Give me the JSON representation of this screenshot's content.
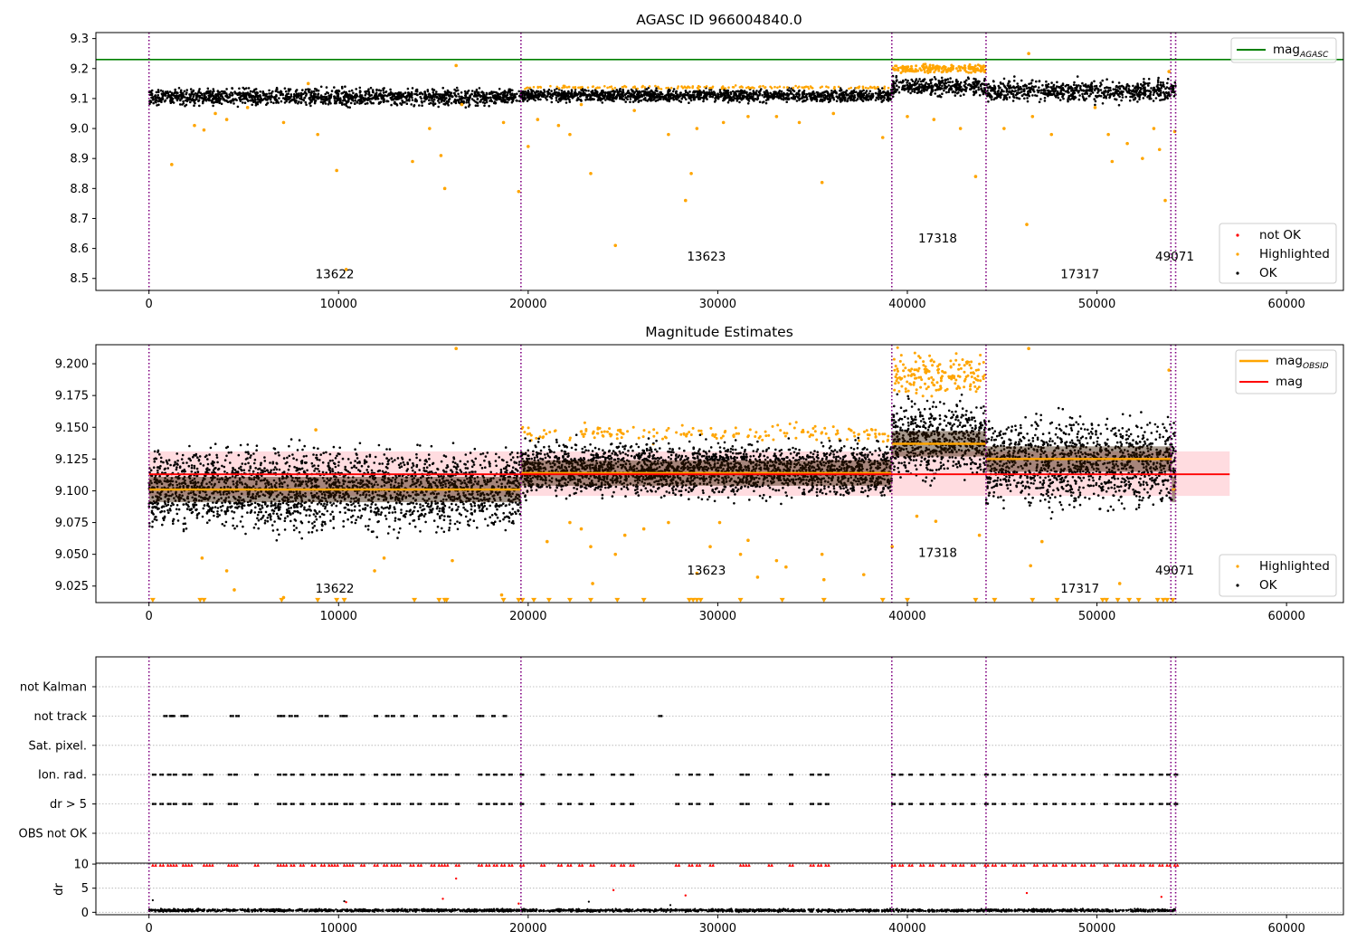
{
  "figure": {
    "colors": {
      "ok": "#000000",
      "highlighted": "#ffa500",
      "not_ok": "#ff0000",
      "agasc_line": "#008000",
      "mag_line": "#ff0000",
      "mag_obsid_line": "#ffa500",
      "band_fill": "#ffc0c6",
      "obsid_boundary": "#800080",
      "grid": "#b0b0b0"
    },
    "obsid_boundaries": [
      0,
      19620,
      39180,
      44150,
      53900,
      54150
    ],
    "obsid_labels": [
      "13622",
      "13623",
      "17318",
      "17317",
      "49071"
    ]
  },
  "chart_data": [
    {
      "type": "scatter",
      "title": "AGASC ID 966004840.0",
      "xlim": [
        -2800,
        63000
      ],
      "ylim": [
        8.46,
        9.32
      ],
      "xticks": [
        0,
        10000,
        20000,
        30000,
        40000,
        50000,
        60000
      ],
      "xticklabels": [
        "0",
        "10000",
        "20000",
        "30000",
        "40000",
        "50000",
        "60000"
      ],
      "yticks": [
        8.5,
        8.6,
        8.7,
        8.8,
        8.9,
        9.0,
        9.1,
        9.2,
        9.3
      ],
      "yticklabels": [
        "8.5",
        "8.6",
        "8.7",
        "8.8",
        "8.9",
        "9.0",
        "9.1",
        "9.2",
        "9.3"
      ],
      "hlines": [
        {
          "name": "mag_AGASC",
          "y": 9.23
        }
      ],
      "obsid_annotations": [
        {
          "text": "13622",
          "x": 9800,
          "y": 8.5
        },
        {
          "text": "13623",
          "x": 29400,
          "y": 8.56
        },
        {
          "text": "17318",
          "x": 41600,
          "y": 8.62
        },
        {
          "text": "17317",
          "x": 49100,
          "y": 8.5
        },
        {
          "text": "49071",
          "x": 54100,
          "y": 8.56
        }
      ],
      "series": [
        {
          "name": "not OK",
          "color": "#ff0000",
          "points": []
        },
        {
          "name": "Highlighted",
          "color": "#ffa500",
          "outliers": [
            [
              1200,
              8.88
            ],
            [
              2400,
              9.01
            ],
            [
              2900,
              8.995
            ],
            [
              3500,
              9.05
            ],
            [
              4100,
              9.03
            ],
            [
              5200,
              9.07
            ],
            [
              7100,
              9.02
            ],
            [
              8400,
              9.15
            ],
            [
              8900,
              8.98
            ],
            [
              9900,
              8.86
            ],
            [
              10400,
              8.53
            ],
            [
              13900,
              8.89
            ],
            [
              14800,
              9.0
            ],
            [
              15400,
              8.91
            ],
            [
              15600,
              8.8
            ],
            [
              16200,
              9.21
            ],
            [
              16500,
              9.08
            ],
            [
              18700,
              9.02
            ],
            [
              19500,
              8.79
            ],
            [
              20000,
              8.94
            ],
            [
              20500,
              9.03
            ],
            [
              21600,
              9.01
            ],
            [
              22200,
              8.98
            ],
            [
              22800,
              9.08
            ],
            [
              23300,
              8.85
            ],
            [
              24600,
              8.61
            ],
            [
              25600,
              9.06
            ],
            [
              27400,
              8.98
            ],
            [
              28300,
              8.76
            ],
            [
              28600,
              8.85
            ],
            [
              28900,
              9.0
            ],
            [
              30300,
              9.02
            ],
            [
              31600,
              9.04
            ],
            [
              33100,
              9.04
            ],
            [
              34300,
              9.02
            ],
            [
              35500,
              8.82
            ],
            [
              36100,
              9.05
            ],
            [
              38700,
              8.97
            ],
            [
              40000,
              9.04
            ],
            [
              41400,
              9.03
            ],
            [
              42800,
              9.0
            ],
            [
              43600,
              8.84
            ],
            [
              45100,
              9.0
            ],
            [
              46300,
              8.68
            ],
            [
              46600,
              9.04
            ],
            [
              47600,
              8.98
            ],
            [
              49900,
              9.07
            ],
            [
              50600,
              8.98
            ],
            [
              50800,
              8.89
            ],
            [
              51600,
              8.95
            ],
            [
              52400,
              8.9
            ],
            [
              53000,
              9.0
            ],
            [
              53300,
              8.93
            ],
            [
              53600,
              8.76
            ],
            [
              53800,
              9.19
            ],
            [
              54100,
              8.99
            ],
            [
              46400,
              9.25
            ]
          ]
        },
        {
          "name": "OK",
          "color": "#000000",
          "bands": [
            {
              "x0": 0,
              "x1": 19620,
              "lo": 9.065,
              "hi": 9.145
            },
            {
              "x0": 19620,
              "x1": 39180,
              "lo": 9.08,
              "hi": 9.14
            },
            {
              "x0": 39180,
              "x1": 44150,
              "lo": 9.1,
              "hi": 9.18
            },
            {
              "x0": 44150,
              "x1": 54150,
              "lo": 9.075,
              "hi": 9.175
            }
          ]
        }
      ],
      "highlight_clusters": [
        {
          "x0": 39200,
          "x1": 44100,
          "lo": 9.18,
          "hi": 9.22
        }
      ],
      "legend_upper": [
        "mag_AGASC"
      ],
      "legend_lower": [
        "not OK",
        "Highlighted",
        "OK"
      ]
    },
    {
      "type": "scatter",
      "title": "Magnitude Estimates",
      "xlim": [
        -2800,
        63000
      ],
      "ylim": [
        9.012,
        9.215
      ],
      "xticks": [
        0,
        10000,
        20000,
        30000,
        40000,
        50000,
        60000
      ],
      "xticklabels": [
        "0",
        "10000",
        "20000",
        "30000",
        "40000",
        "50000",
        "60000"
      ],
      "yticks": [
        9.025,
        9.05,
        9.075,
        9.1,
        9.125,
        9.15,
        9.175,
        9.2
      ],
      "yticklabels": [
        "9.025",
        "9.050",
        "9.075",
        "9.100",
        "9.125",
        "9.150",
        "9.175",
        "9.200"
      ],
      "mag": {
        "y": 9.113,
        "x0": 0,
        "x1": 57000,
        "band_lo": 9.096,
        "band_hi": 9.131
      },
      "mag_obsid": [
        {
          "x0": 0,
          "x1": 19620,
          "y": 9.101
        },
        {
          "x0": 19620,
          "x1": 39180,
          "y": 9.114
        },
        {
          "x0": 39180,
          "x1": 44150,
          "y": 9.137
        },
        {
          "x0": 44150,
          "x1": 53950,
          "y": 9.125
        },
        {
          "x0": 53950,
          "x1": 54150,
          "y": 9.101
        }
      ],
      "obsid_annotations": [
        {
          "text": "13622",
          "x": 9800,
          "y": 9.02
        },
        {
          "text": "13623",
          "x": 29400,
          "y": 9.034
        },
        {
          "text": "17318",
          "x": 41600,
          "y": 9.048
        },
        {
          "text": "17317",
          "x": 49100,
          "y": 9.02
        },
        {
          "text": "49071",
          "x": 54100,
          "y": 9.034
        }
      ],
      "ok_bands": [
        {
          "x0": 0,
          "x1": 19620,
          "lo": 9.058,
          "hi": 9.145
        },
        {
          "x0": 19620,
          "x1": 39180,
          "lo": 9.088,
          "hi": 9.145
        },
        {
          "x0": 39180,
          "x1": 44150,
          "lo": 9.1,
          "hi": 9.18
        },
        {
          "x0": 44150,
          "x1": 54150,
          "lo": 9.075,
          "hi": 9.17
        }
      ],
      "highlighted_clusters": [
        {
          "x0": 39200,
          "x1": 44100,
          "lo": 9.17,
          "hi": 9.215
        },
        {
          "x0": 19620,
          "x1": 39180,
          "lo": 9.135,
          "hi": 9.155
        }
      ],
      "highlighted_outliers": [
        [
          2800,
          9.047
        ],
        [
          4100,
          9.037
        ],
        [
          4500,
          9.022
        ],
        [
          7100,
          9.016
        ],
        [
          8800,
          9.148
        ],
        [
          11900,
          9.037
        ],
        [
          12400,
          9.047
        ],
        [
          16200,
          9.212
        ],
        [
          16000,
          9.045
        ],
        [
          18600,
          9.018
        ],
        [
          21000,
          9.06
        ],
        [
          22200,
          9.075
        ],
        [
          22800,
          9.07
        ],
        [
          23300,
          9.056
        ],
        [
          23400,
          9.027
        ],
        [
          24600,
          9.05
        ],
        [
          25100,
          9.065
        ],
        [
          26100,
          9.07
        ],
        [
          27400,
          9.075
        ],
        [
          28900,
          9.035
        ],
        [
          29600,
          9.056
        ],
        [
          30100,
          9.075
        ],
        [
          31200,
          9.05
        ],
        [
          31600,
          9.061
        ],
        [
          32100,
          9.032
        ],
        [
          33100,
          9.045
        ],
        [
          33600,
          9.04
        ],
        [
          35500,
          9.05
        ],
        [
          35600,
          9.03
        ],
        [
          37700,
          9.034
        ],
        [
          39200,
          9.056
        ],
        [
          40500,
          9.08
        ],
        [
          41500,
          9.076
        ],
        [
          43800,
          9.065
        ],
        [
          46500,
          9.041
        ],
        [
          47100,
          9.06
        ],
        [
          51200,
          9.027
        ],
        [
          53800,
          9.195
        ],
        [
          46400,
          9.212
        ]
      ],
      "low_markers_x": [
        200,
        2700,
        2900,
        7000,
        8900,
        9900,
        10300,
        14000,
        15300,
        15600,
        15700,
        18700,
        19500,
        19700,
        20300,
        21100,
        22200,
        23300,
        24700,
        26100,
        28500,
        28700,
        28900,
        29100,
        31200,
        33400,
        35600,
        38700,
        40000,
        43600,
        44600,
        46600,
        47900,
        50300,
        50500,
        51100,
        51700,
        52200,
        53200,
        53500,
        53700,
        54000
      ],
      "legend_upper": [
        "mag_OBSID",
        "mag"
      ],
      "legend_lower": [
        "Highlighted",
        "OK"
      ]
    },
    {
      "type": "scatter",
      "title": "",
      "xlim": [
        -2800,
        63000
      ],
      "categories": [
        "not Kalman",
        "not track",
        "Sat. pixel.",
        "Ion. rad.",
        "dr > 5",
        "OBS not OK"
      ],
      "flag_x": {
        "not Kalman": [],
        "not track": [
          800,
          1100,
          1200,
          1700,
          1900,
          4300,
          4600,
          6800,
          7000,
          7400,
          7700,
          9000,
          9300,
          10100,
          10300,
          11900,
          12500,
          12800,
          13300,
          14000,
          15000,
          15400,
          16100,
          17300,
          17500,
          18100,
          18700,
          26900
        ],
        "Sat. pixel.": [],
        "Ion. rad.": [
          200,
          600,
          1000,
          1300,
          1800,
          2100,
          2900,
          3200,
          4200,
          4500,
          5600,
          6800,
          7100,
          7500,
          8000,
          8600,
          9100,
          9500,
          9800,
          10300,
          10600,
          11200,
          11900,
          12400,
          12800,
          13100,
          13800,
          14200,
          14900,
          15300,
          15600,
          16200,
          17400,
          17800,
          18200,
          18600,
          19000,
          19600,
          20700,
          21600,
          22100,
          22700,
          23300,
          24400,
          24900,
          25400,
          27800,
          28500,
          28900,
          29600,
          31200,
          31500,
          32700,
          33800,
          34900,
          35300,
          35700,
          39200,
          39600,
          40100,
          40700,
          41200,
          41800,
          42400,
          42800,
          43400,
          44100,
          44500,
          45000,
          45600,
          46000,
          46700,
          47200,
          47700,
          48200,
          48700,
          49200,
          49700,
          50400,
          51000,
          51400,
          51800,
          52300,
          52800,
          53300,
          53700,
          54100
        ],
        "dr > 5": [
          200,
          600,
          1000,
          1300,
          1800,
          2100,
          2900,
          3200,
          4200,
          4500,
          5600,
          6800,
          7100,
          7500,
          8000,
          8600,
          9100,
          9500,
          9800,
          10300,
          10600,
          11200,
          11900,
          12400,
          12800,
          13100,
          13800,
          14200,
          14900,
          15300,
          15600,
          16200,
          17400,
          17800,
          18200,
          18600,
          19000,
          19600,
          20700,
          21600,
          22100,
          22700,
          23300,
          24400,
          24900,
          25400,
          27800,
          28500,
          28900,
          29600,
          31200,
          31500,
          32700,
          33800,
          34900,
          35300,
          35700,
          39200,
          39600,
          40100,
          40700,
          41200,
          41800,
          42400,
          42800,
          43400,
          44100,
          44500,
          45000,
          45600,
          46000,
          46700,
          47200,
          47700,
          48200,
          48700,
          49200,
          49700,
          50400,
          51000,
          51400,
          51800,
          52300,
          52800,
          53300,
          53700,
          54100
        ],
        "OBS not OK": []
      }
    },
    {
      "type": "scatter",
      "title": "",
      "ylabel": "dr",
      "xlim": [
        -2800,
        63000
      ],
      "ylim": [
        -0.5,
        10.2
      ],
      "yticks": [
        0,
        5,
        10
      ],
      "yticklabels": [
        "0",
        "5",
        "10"
      ],
      "xticks": [
        0,
        10000,
        20000,
        30000,
        40000,
        50000,
        60000
      ],
      "xticklabels": [
        "0",
        "10000",
        "20000",
        "30000",
        "40000",
        "50000",
        "60000"
      ],
      "capped_red_x": [
        200,
        600,
        1000,
        1300,
        1800,
        2100,
        2900,
        3200,
        4200,
        4500,
        5600,
        6800,
        7100,
        7500,
        8000,
        8600,
        9100,
        9500,
        9800,
        10300,
        10600,
        11200,
        11900,
        12400,
        12800,
        13100,
        13800,
        14200,
        14900,
        15300,
        15600,
        16200,
        17400,
        17800,
        18200,
        18600,
        19000,
        19600,
        20700,
        21600,
        22100,
        22700,
        23300,
        24400,
        24900,
        25400,
        27800,
        28500,
        28900,
        29600,
        31200,
        31500,
        32700,
        33800,
        34900,
        35300,
        35700,
        39200,
        39600,
        40100,
        40700,
        41200,
        41800,
        42400,
        42800,
        43400,
        44100,
        44500,
        45000,
        45600,
        46000,
        46700,
        47200,
        47700,
        48200,
        48700,
        49200,
        49700,
        50400,
        51000,
        51400,
        51800,
        52300,
        52800,
        53300,
        53700,
        54100
      ],
      "red_points": [
        [
          16200,
          7.0
        ],
        [
          15500,
          2.8
        ],
        [
          24500,
          4.6
        ],
        [
          28300,
          3.5
        ],
        [
          46300,
          4.0
        ],
        [
          53400,
          3.2
        ],
        [
          19500,
          1.8
        ],
        [
          10400,
          2.1
        ]
      ],
      "ok_baseline": {
        "x0": 0,
        "x1": 54150,
        "lo": 0.0,
        "hi": 0.8
      },
      "ok_outliers": [
        [
          23200,
          2.2
        ],
        [
          10300,
          2.3
        ],
        [
          200,
          2.5
        ],
        [
          27500,
          1.5
        ]
      ]
    }
  ]
}
